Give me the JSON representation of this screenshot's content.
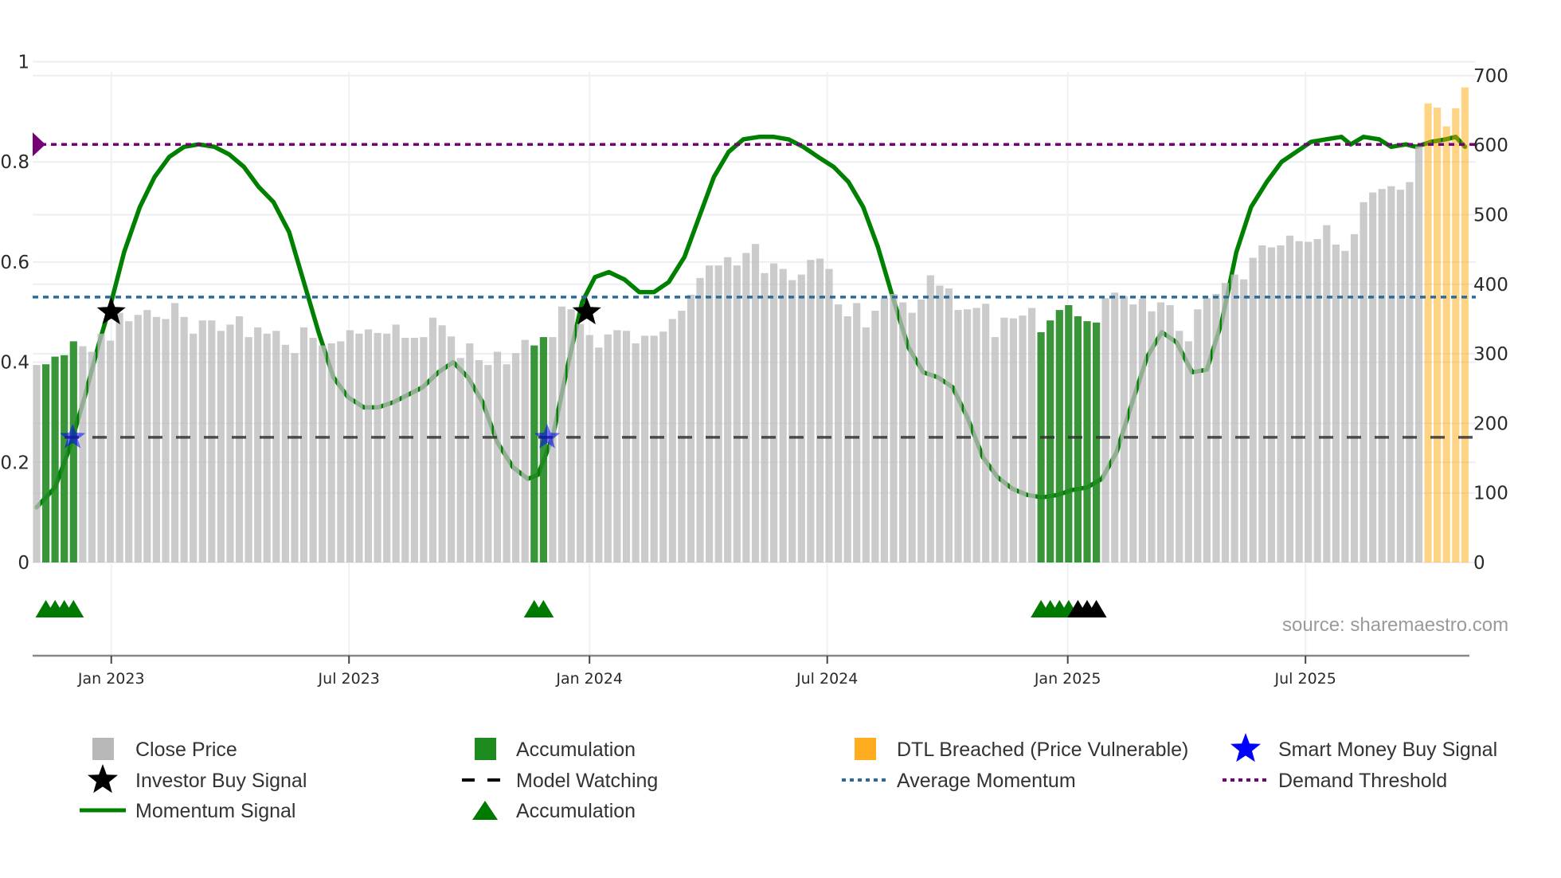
{
  "source": "source: sharemaestro.com",
  "colors": {
    "close_price": "#bdbdbd",
    "accumulation_bar": "#228b22",
    "dtl_breached": "#ffa500",
    "momentum": "#008000",
    "investor_buy": "#000000",
    "smart_money": "#0000ff",
    "model_watching": "#333333",
    "average_momentum": "#2b6c9c",
    "demand_threshold": "#760076",
    "accumulation_marker": "#007a00",
    "black_marker": "#000000"
  },
  "chart_data": {
    "type": "bar+line",
    "x_unit": "week index",
    "left_axis": {
      "ylim": [
        0,
        1
      ],
      "ticks": [
        0,
        0.2,
        0.4,
        0.6,
        0.8,
        1
      ],
      "tick_labels": [
        "0",
        "0.2",
        "0.4",
        "0.6",
        "0.8",
        "1"
      ]
    },
    "right_axis": {
      "ylim": [
        0,
        700
      ],
      "ticks": [
        0,
        100,
        200,
        300,
        400,
        500,
        600,
        700
      ],
      "tick_labels": [
        "0",
        "100",
        "200",
        "300",
        "400",
        "500",
        "600",
        "700"
      ]
    },
    "x_ticks": [
      {
        "x": 8.1,
        "label": "Jan 2023"
      },
      {
        "x": 33.9,
        "label": "Jul 2023"
      },
      {
        "x": 60.0,
        "label": "Jan 2024"
      },
      {
        "x": 85.8,
        "label": "Jul 2024"
      },
      {
        "x": 111.9,
        "label": "Jan 2025"
      },
      {
        "x": 137.7,
        "label": "Jul 2025"
      }
    ],
    "grid": true,
    "close_price": [
      284,
      285,
      296,
      298,
      318,
      311,
      303,
      329,
      319,
      359,
      347,
      356,
      363,
      353,
      350,
      373,
      353,
      329,
      348,
      348,
      333,
      342,
      354,
      324,
      338,
      329,
      333,
      313,
      301,
      338,
      323,
      312,
      315,
      318,
      334,
      329,
      335,
      330,
      329,
      342,
      323,
      323,
      324,
      352,
      341,
      325,
      294,
      315,
      291,
      284,
      303,
      285,
      301,
      320,
      312,
      324,
      324,
      368,
      364,
      343,
      327,
      309,
      328,
      334,
      333,
      315,
      326,
      326,
      332,
      350,
      362,
      385,
      409,
      427,
      427,
      439,
      427,
      445,
      458,
      416,
      430,
      422,
      406,
      414,
      435,
      437,
      422,
      371,
      354,
      373,
      338,
      362,
      380,
      386,
      374,
      359,
      378,
      413,
      398,
      394,
      363,
      364,
      366,
      372,
      324,
      352,
      351,
      355,
      366,
      331,
      348,
      363,
      370,
      354,
      347,
      345,
      380,
      388,
      383,
      371,
      379,
      361,
      374,
      370,
      333,
      318,
      364,
      380,
      386,
      402,
      414,
      407,
      438,
      456,
      453,
      456,
      470,
      462,
      461,
      465,
      485,
      457,
      448,
      472,
      518,
      532,
      537,
      541,
      536,
      547,
      598,
      660,
      654,
      627,
      653,
      683
    ],
    "accumulation_bars": [
      1,
      2,
      3,
      4,
      54,
      55,
      109,
      110,
      111,
      112,
      113,
      114,
      115
    ],
    "dtl_breached_bars": [
      151,
      152,
      153,
      154,
      155
    ],
    "momentum": {
      "x": [
        0,
        2.0,
        3.6,
        5.2,
        6.8,
        8.1,
        9.5,
        11.2,
        12.8,
        14.4,
        16.0,
        17.6,
        19.3,
        20.9,
        22.5,
        24.1,
        25.7,
        27.4,
        29.0,
        30.6,
        32.2,
        33.8,
        35.5,
        37.1,
        38.7,
        40.3,
        41.9,
        43.6,
        45.2,
        46.8,
        48.4,
        50.0,
        51.7,
        53.3,
        54.4,
        56.0,
        57.6,
        59.2,
        60.6,
        62.1,
        63.8,
        65.4,
        67.0,
        68.6,
        70.3,
        71.9,
        73.5,
        75.1,
        76.7,
        78.4,
        80.0,
        81.6,
        83.2,
        84.8,
        86.5,
        88.1,
        89.7,
        91.3,
        92.9,
        94.6,
        96.2,
        97.8,
        99.4,
        101.0,
        102.7,
        104.3,
        105.9,
        107.5,
        109.1,
        110.8,
        112.4,
        114.0,
        115.6,
        117.2,
        118.9,
        120.5,
        122.1,
        123.7,
        125.4,
        127.0,
        128.6,
        130.2,
        131.8,
        133.5,
        135.1,
        136.7,
        138.3,
        139.9,
        141.6,
        142.6,
        144.0,
        145.7,
        147.0,
        148.6,
        149.7,
        151.3,
        152.9,
        154.0,
        155.0
      ],
      "y": [
        0.11,
        0.15,
        0.23,
        0.33,
        0.44,
        0.52,
        0.62,
        0.71,
        0.77,
        0.81,
        0.83,
        0.835,
        0.83,
        0.815,
        0.79,
        0.75,
        0.72,
        0.66,
        0.56,
        0.46,
        0.37,
        0.33,
        0.31,
        0.31,
        0.32,
        0.335,
        0.35,
        0.38,
        0.4,
        0.37,
        0.32,
        0.24,
        0.19,
        0.167,
        0.175,
        0.25,
        0.39,
        0.52,
        0.57,
        0.58,
        0.565,
        0.54,
        0.54,
        0.56,
        0.61,
        0.69,
        0.77,
        0.82,
        0.845,
        0.85,
        0.85,
        0.845,
        0.83,
        0.81,
        0.79,
        0.76,
        0.71,
        0.63,
        0.53,
        0.43,
        0.38,
        0.37,
        0.35,
        0.29,
        0.21,
        0.17,
        0.147,
        0.135,
        0.13,
        0.135,
        0.145,
        0.15,
        0.167,
        0.22,
        0.32,
        0.41,
        0.46,
        0.44,
        0.38,
        0.385,
        0.48,
        0.62,
        0.71,
        0.76,
        0.8,
        0.82,
        0.84,
        0.845,
        0.85,
        0.835,
        0.85,
        0.845,
        0.83,
        0.835,
        0.83,
        0.84,
        0.845,
        0.85,
        0.83
      ]
    },
    "investor_buy_signals": [
      {
        "x": 8.1,
        "y": 0.5
      },
      {
        "x": 59.7,
        "y": 0.5
      }
    ],
    "smart_money_buy_signals": [
      {
        "x": 3.9,
        "y": 0.25
      },
      {
        "x": 55.4,
        "y": 0.25
      }
    ],
    "accumulation_markers": [
      1,
      2,
      3,
      4,
      54,
      55,
      109,
      110,
      111,
      112
    ],
    "black_markers": [
      113,
      114,
      115
    ],
    "model_watching": 0.25,
    "average_momentum": 0.53,
    "demand_threshold": 0.835,
    "legend": [
      {
        "key": "close_price",
        "label": "Close Price"
      },
      {
        "key": "accumulation_bar",
        "label": "Accumulation"
      },
      {
        "key": "dtl_breached",
        "label": "DTL Breached (Price Vulnerable)"
      },
      {
        "key": "smart_money",
        "label": "Smart Money Buy Signal"
      },
      {
        "key": "investor_buy",
        "label": "Investor Buy Signal"
      },
      {
        "key": "model_watching",
        "label": "Model Watching"
      },
      {
        "key": "average_momentum",
        "label": "Average Momentum"
      },
      {
        "key": "demand_threshold",
        "label": "Demand Threshold"
      },
      {
        "key": "momentum",
        "label": "Momentum Signal"
      },
      {
        "key": "accumulation_marker",
        "label": "Accumulation"
      }
    ],
    "legend_position": "bottom"
  }
}
